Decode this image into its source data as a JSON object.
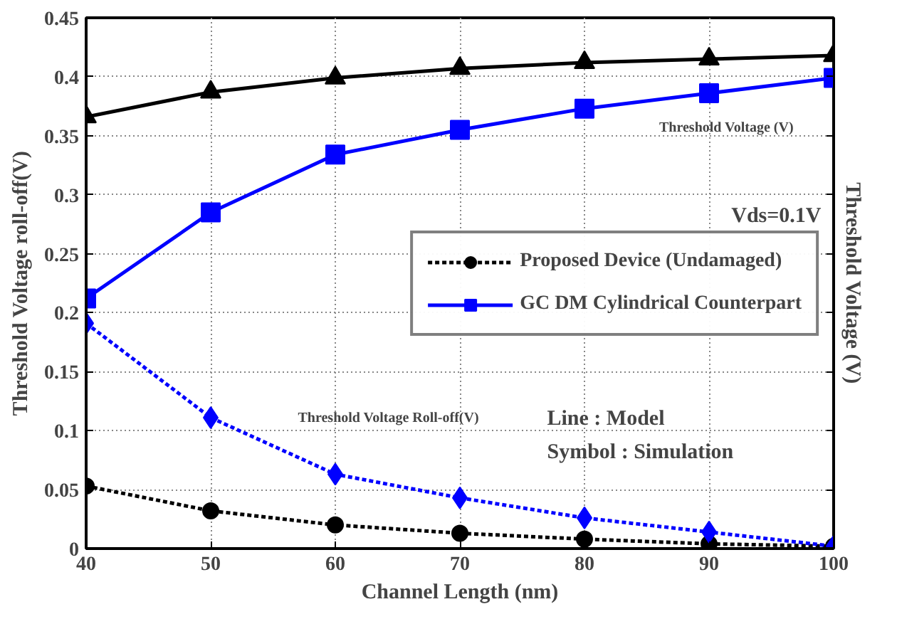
{
  "chart_data": {
    "type": "line",
    "xlabel": "Channel Length (nm)",
    "ylabel": "Threshold Voltage roll-off(V)",
    "y2label": "Threshold Voltage (V)",
    "x": [
      40,
      50,
      60,
      70,
      80,
      90,
      100
    ],
    "series": [
      {
        "name": "Proposed Device (Undamaged)",
        "color": "#000000",
        "marker": "circle",
        "line_style": "dotted",
        "values": [
          0.053,
          0.032,
          0.02,
          0.013,
          0.008,
          0.004,
          0.002
        ]
      },
      {
        "color": "#000000",
        "marker": "triangle",
        "line_style": "solid",
        "values": [
          0.366,
          0.387,
          0.399,
          0.407,
          0.412,
          0.415,
          0.418
        ]
      },
      {
        "name": "GC DM Cylindrical Counterpart",
        "color": "#0000ff",
        "marker": "square",
        "line_style": "solid",
        "values": [
          0.212,
          0.285,
          0.334,
          0.355,
          0.373,
          0.386,
          0.399
        ]
      },
      {
        "color": "#0000ff",
        "marker": "diamond",
        "line_style": "dotted",
        "values": [
          0.191,
          0.111,
          0.063,
          0.043,
          0.026,
          0.014,
          0.002
        ]
      }
    ],
    "xlim": [
      40,
      100
    ],
    "xticks": [
      40,
      50,
      60,
      70,
      80,
      90,
      100
    ],
    "ylim": [
      0,
      0.45
    ],
    "yticks": [
      0,
      0.05,
      0.1,
      0.15,
      0.2,
      0.25,
      0.3,
      0.35,
      0.4,
      0.45
    ],
    "grid": true,
    "legend": "right",
    "annotations": [
      "Threshold Voltage (V)",
      "Vds=0.1V",
      "Threshold Voltage Roll-off(V)",
      "Line : Model",
      "Symbol : Simulation"
    ]
  }
}
